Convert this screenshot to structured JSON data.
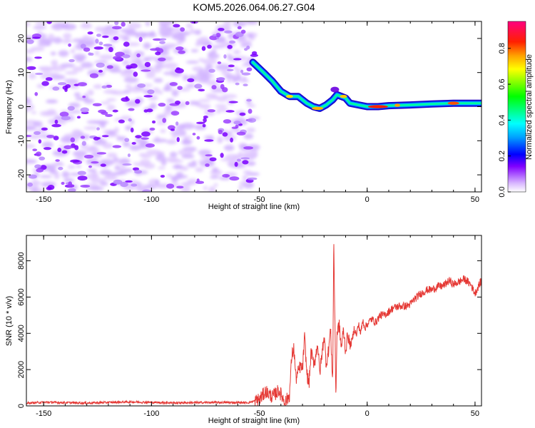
{
  "title": "KOM5.2026.064.06.27.G04",
  "chart_data": [
    {
      "type": "heatmap",
      "xlabel": "Height of straight line (km)",
      "ylabel": "Frequency (Hz)",
      "xlim": [
        -158,
        53
      ],
      "ylim": [
        -25,
        25
      ],
      "x_ticks": [
        -150,
        -100,
        -50,
        0,
        50
      ],
      "y_ticks": [
        -20,
        -10,
        0,
        10,
        20
      ],
      "noise_region_x": [
        -158,
        -52
      ],
      "ridge": {
        "x": [
          -53,
          -48,
          -44,
          -40,
          -36,
          -32,
          -28,
          -25,
          -22,
          -19,
          -16,
          -14,
          -12,
          -10,
          -8,
          -4,
          0,
          5,
          10,
          20,
          30,
          40,
          53
        ],
        "y": [
          13,
          10,
          7.5,
          4.5,
          3,
          3,
          1,
          0,
          -0.5,
          0.5,
          2,
          3.5,
          3,
          2.5,
          1,
          0.5,
          0,
          0,
          0.3,
          0.5,
          0.8,
          1,
          1
        ]
      },
      "colorbar": {
        "label": "Normalized spectral amplitude",
        "ticks": [
          0.0,
          0.2,
          0.4,
          0.6,
          0.8
        ],
        "range": [
          0,
          0.95
        ]
      }
    },
    {
      "type": "line",
      "xlabel": "Height of straight line (km)",
      "ylabel": "SNR (10 * v/v)",
      "xlim": [
        -158,
        53
      ],
      "ylim": [
        0,
        9400
      ],
      "x_ticks": [
        -150,
        -100,
        -50,
        0,
        50
      ],
      "y_ticks": [
        0,
        2000,
        4000,
        6000,
        8000
      ],
      "color": "#e53935",
      "series": [
        {
          "x": [
            -158,
            -150,
            -130,
            -110,
            -90,
            -70,
            -55,
            -50,
            -47,
            -44,
            -41,
            -38,
            -36,
            -35,
            -34,
            -33,
            -31,
            -30,
            -29,
            -28,
            -27,
            -26,
            -25,
            -24,
            -23,
            -22,
            -21,
            -20,
            -19,
            -18,
            -17,
            -16,
            -15.5,
            -15,
            -14.5,
            -14,
            -13,
            -12,
            -11,
            -10,
            -9,
            -8,
            -7,
            -6,
            -5,
            -4,
            -3,
            -2,
            -1,
            0,
            2,
            4,
            6,
            8,
            10,
            12,
            15,
            18,
            20,
            22,
            25,
            28,
            30,
            33,
            35,
            38,
            40,
            42,
            45,
            48,
            50,
            52,
            53
          ],
          "y": [
            150,
            200,
            160,
            220,
            170,
            190,
            180,
            350,
            800,
            500,
            850,
            200,
            600,
            2700,
            3200,
            1500,
            2200,
            2000,
            3800,
            1800,
            1200,
            3000,
            2400,
            2600,
            3500,
            1800,
            2800,
            3900,
            2300,
            3000,
            4200,
            1200,
            9400,
            5000,
            500,
            4000,
            4500,
            3200,
            4200,
            3000,
            4000,
            3300,
            3600,
            4300,
            3900,
            4500,
            4000,
            4700,
            4300,
            4500,
            4800,
            4600,
            5000,
            5000,
            5200,
            5400,
            5500,
            5500,
            5600,
            5900,
            6200,
            6400,
            6400,
            6600,
            6600,
            6900,
            6700,
            6800,
            7000,
            6700,
            6200,
            6700,
            6900
          ]
        }
      ]
    }
  ]
}
